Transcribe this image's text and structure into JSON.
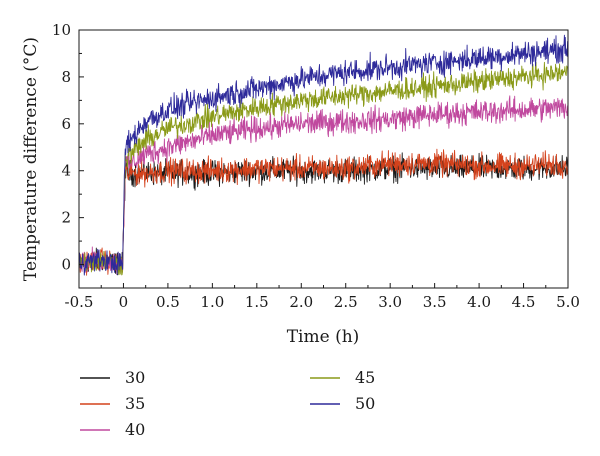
{
  "chart_data": {
    "type": "line",
    "title": "",
    "xlabel": "Time (h)",
    "ylabel": "Temperature difference (°C)",
    "xlim": [
      -0.5,
      5.0
    ],
    "ylim": [
      -1,
      10
    ],
    "xticks": [
      "-0.5",
      "0",
      "0.5",
      "1.0",
      "1.5",
      "2.0",
      "2.5",
      "3.0",
      "3.5",
      "4.0",
      "4.5",
      "5.0"
    ],
    "yticks": [
      "0",
      "2",
      "4",
      "6",
      "8",
      "10"
    ],
    "grid": false,
    "legend_position": "below plot, two columns",
    "series": [
      {
        "name": "30",
        "color": "#1a1a1a",
        "x": [
          -0.5,
          -0.25,
          -0.01,
          0.02,
          0.25,
          0.5,
          1.0,
          1.5,
          2.0,
          2.5,
          3.0,
          3.5,
          4.0,
          4.5,
          5.0
        ],
        "y": [
          0.1,
          0.2,
          0.0,
          3.9,
          3.9,
          3.9,
          3.9,
          4.0,
          4.0,
          4.0,
          4.1,
          4.1,
          4.1,
          4.1,
          4.1
        ]
      },
      {
        "name": "35",
        "color": "#d4421c",
        "x": [
          -0.5,
          -0.25,
          -0.01,
          0.02,
          0.25,
          0.5,
          1.0,
          1.5,
          2.0,
          2.5,
          3.0,
          3.5,
          4.0,
          4.5,
          5.0
        ],
        "y": [
          0.1,
          0.2,
          0.0,
          3.9,
          3.9,
          4.0,
          4.0,
          4.1,
          4.1,
          4.1,
          4.3,
          4.3,
          4.2,
          4.2,
          4.3
        ]
      },
      {
        "name": "40",
        "color": "#c0489e",
        "x": [
          -0.5,
          -0.25,
          -0.01,
          0.02,
          0.25,
          0.5,
          1.0,
          1.5,
          2.0,
          2.5,
          3.0,
          3.5,
          4.0,
          4.5,
          5.0
        ],
        "y": [
          0.1,
          0.2,
          0.0,
          4.2,
          4.7,
          5.0,
          5.5,
          5.8,
          6.0,
          6.1,
          6.2,
          6.4,
          6.5,
          6.6,
          6.7
        ]
      },
      {
        "name": "45",
        "color": "#8a9a18",
        "x": [
          -0.5,
          -0.25,
          -0.01,
          0.02,
          0.25,
          0.5,
          1.0,
          1.5,
          2.0,
          2.5,
          3.0,
          3.5,
          4.0,
          4.5,
          5.0
        ],
        "y": [
          0.1,
          0.2,
          0.0,
          4.5,
          5.3,
          5.8,
          6.3,
          6.7,
          7.0,
          7.2,
          7.4,
          7.6,
          7.8,
          8.0,
          8.2
        ]
      },
      {
        "name": "50",
        "color": "#2e2a9a",
        "x": [
          -0.5,
          -0.25,
          -0.01,
          0.02,
          0.25,
          0.5,
          1.0,
          1.5,
          2.0,
          2.5,
          3.0,
          3.5,
          4.0,
          4.5,
          5.0
        ],
        "y": [
          0.1,
          0.2,
          0.0,
          5.0,
          6.1,
          6.6,
          7.1,
          7.5,
          7.9,
          8.2,
          8.4,
          8.6,
          8.8,
          9.0,
          9.2
        ]
      }
    ]
  }
}
